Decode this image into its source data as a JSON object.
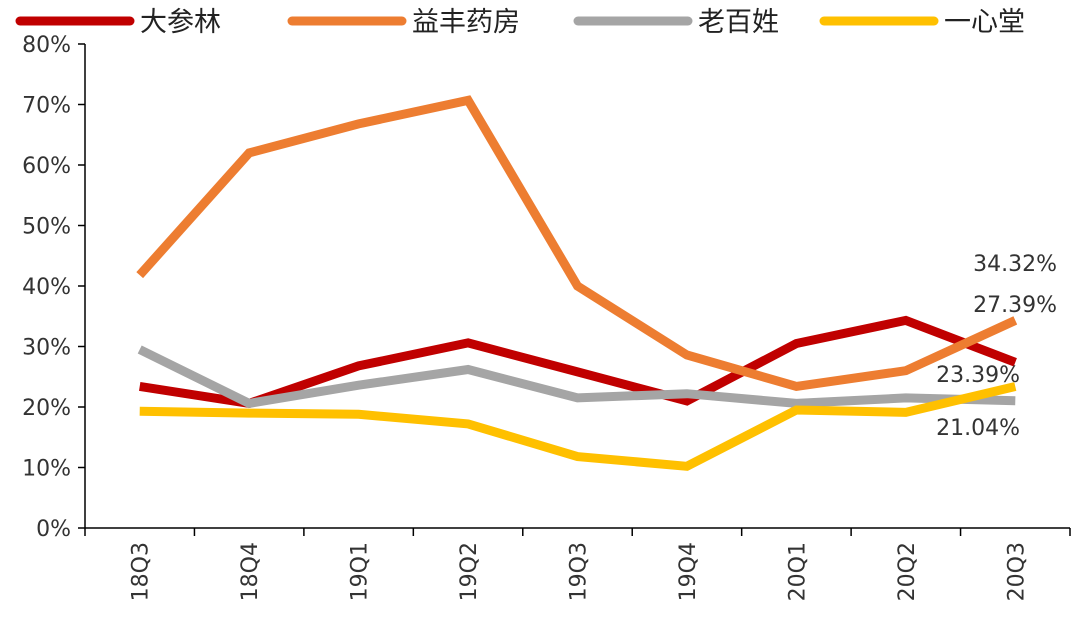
{
  "chart_data": {
    "type": "line",
    "title": "",
    "xlabel": "",
    "ylabel": "",
    "categories": [
      "18Q3",
      "18Q4",
      "19Q1",
      "19Q2",
      "19Q3",
      "19Q4",
      "20Q1",
      "20Q2",
      "20Q3"
    ],
    "ylim": [
      0,
      80
    ],
    "yticks": [
      0,
      10,
      20,
      30,
      40,
      50,
      60,
      70,
      80
    ],
    "y_tick_labels": [
      "0%",
      "10%",
      "20%",
      "30%",
      "40%",
      "50%",
      "60%",
      "70%",
      "80%"
    ],
    "grid": false,
    "legend_position": "top",
    "series": [
      {
        "name": "大参林",
        "color": "#C00000",
        "values": [
          23.4,
          20.6,
          26.8,
          30.6,
          25.8,
          21.0,
          30.5,
          34.32,
          27.39
        ]
      },
      {
        "name": "益丰药房",
        "color": "#ED7D31",
        "values": [
          41.8,
          62.0,
          66.8,
          70.7,
          40.0,
          28.6,
          23.4,
          26.0,
          34.32
        ]
      },
      {
        "name": "老百姓",
        "color": "#A5A5A5",
        "values": [
          29.5,
          20.6,
          23.6,
          26.2,
          21.5,
          22.2,
          20.6,
          21.5,
          21.04
        ]
      },
      {
        "name": "一心堂",
        "color": "#FFC000",
        "values": [
          19.3,
          19.0,
          18.8,
          17.2,
          11.8,
          10.2,
          19.5,
          19.1,
          23.39
        ]
      }
    ],
    "annotations": [
      {
        "text": "34.32%",
        "x": "20Q3",
        "y": 34.32
      },
      {
        "text": "27.39%",
        "x": "20Q3",
        "y": 27.39
      },
      {
        "text": "23.39%",
        "x": "20Q3",
        "y": 23.39
      },
      {
        "text": "21.04%",
        "x": "20Q3",
        "y": 21.04
      }
    ]
  }
}
